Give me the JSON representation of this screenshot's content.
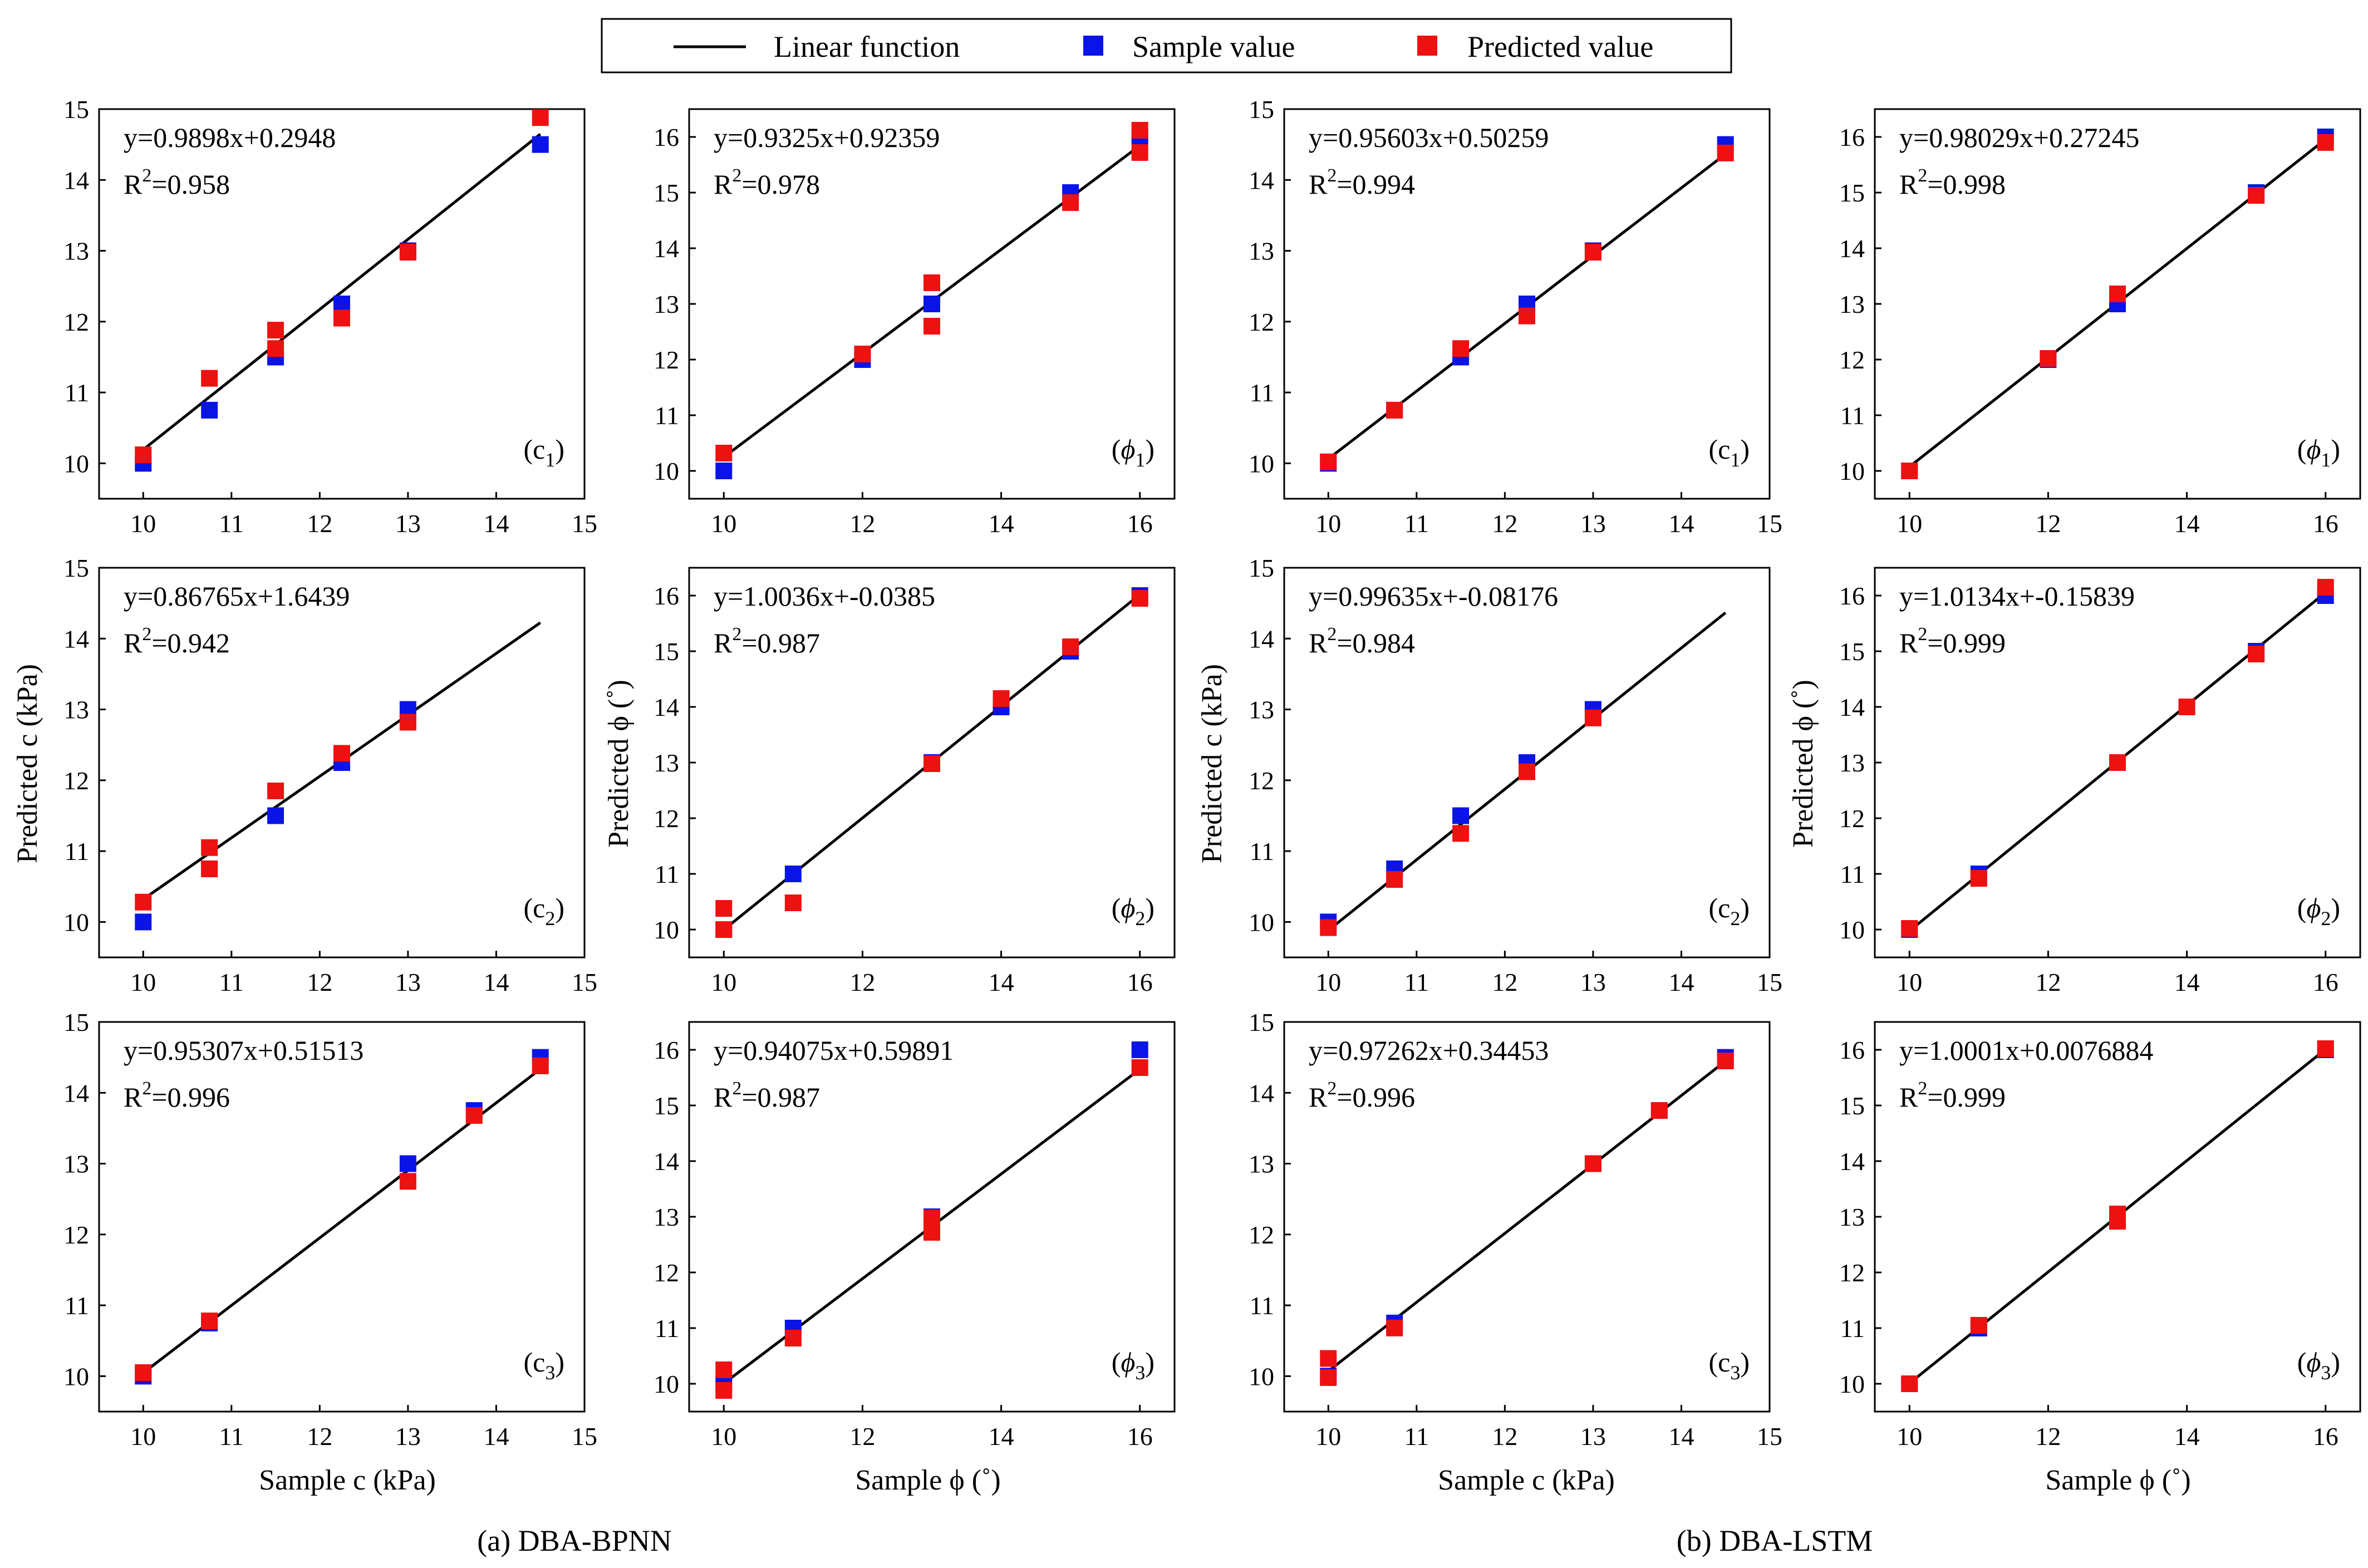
{
  "legend": {
    "line_label": "Linear function",
    "sample_label": "Sample value",
    "predicted_label": "Predicted value"
  },
  "colors": {
    "sample": "#0a14e6",
    "predicted": "#ee1111",
    "line": "#000000"
  },
  "captions": {
    "left": "(a) DBA-BPNN",
    "right": "(b) DBA-LSTM"
  },
  "axis_labels": {
    "y_c": "Predicted c (kPa)",
    "y_phi": "Predicted ϕ (˚)",
    "x_c": "Sample c (kPa)",
    "x_phi": "Sample ϕ (˚)"
  },
  "chart_data": [
    {
      "type": "scatter",
      "model": "DBA-BPNN",
      "panel": "c1",
      "label": "c",
      "sub": "1",
      "equation": "y=0.9898x+0.2948",
      "r2": "=0.958",
      "slope": 0.9898,
      "intercept": 0.2948,
      "xlim": [
        9.5,
        15
      ],
      "ylim": [
        9.5,
        15
      ],
      "xticks": [
        10,
        11,
        12,
        13,
        14,
        15
      ],
      "yticks": [
        10,
        11,
        12,
        13,
        14,
        15
      ],
      "line_x": [
        10,
        14.5
      ],
      "sample": [
        [
          10,
          10
        ],
        [
          10.75,
          10.75
        ],
        [
          11.5,
          11.5
        ],
        [
          12.25,
          12.25
        ],
        [
          13,
          13
        ],
        [
          14.5,
          14.5
        ]
      ],
      "predicted": [
        [
          10,
          10.12
        ],
        [
          10.75,
          11.2
        ],
        [
          11.5,
          11.88
        ],
        [
          11.5,
          11.62
        ],
        [
          12.25,
          12.05
        ],
        [
          13,
          12.98
        ],
        [
          14.5,
          14.88
        ]
      ]
    },
    {
      "type": "scatter",
      "model": "DBA-BPNN",
      "panel": "phi1",
      "label": "ϕ",
      "sub": "1",
      "equation": "y=0.9325x+0.92359",
      "r2": "=0.978",
      "slope": 0.9325,
      "intercept": 0.92359,
      "xlim": [
        9.5,
        16.5
      ],
      "ylim": [
        9.5,
        16.5
      ],
      "xticks": [
        10,
        12,
        14,
        16
      ],
      "yticks": [
        10,
        11,
        12,
        13,
        14,
        15,
        16
      ],
      "line_x": [
        10,
        16
      ],
      "sample": [
        [
          10,
          10
        ],
        [
          12,
          12
        ],
        [
          13,
          13
        ],
        [
          15,
          15
        ],
        [
          16,
          16
        ]
      ],
      "predicted": [
        [
          10,
          10.32
        ],
        [
          12,
          12.1
        ],
        [
          13,
          13.38
        ],
        [
          13,
          12.6
        ],
        [
          15,
          14.82
        ],
        [
          16,
          16.12
        ],
        [
          16,
          15.72
        ]
      ]
    },
    {
      "type": "scatter",
      "model": "DBA-LSTM",
      "panel": "c1",
      "label": "c",
      "sub": "1",
      "equation": "y=0.95603x+0.50259",
      "r2": "=0.994",
      "slope": 0.95603,
      "intercept": 0.50259,
      "xlim": [
        9.5,
        15
      ],
      "ylim": [
        9.5,
        15
      ],
      "xticks": [
        10,
        11,
        12,
        13,
        14,
        15
      ],
      "yticks": [
        10,
        11,
        12,
        13,
        14,
        15
      ],
      "line_x": [
        10,
        14.5
      ],
      "sample": [
        [
          10,
          10
        ],
        [
          10.75,
          10.75
        ],
        [
          11.5,
          11.5
        ],
        [
          12.25,
          12.25
        ],
        [
          13,
          13
        ],
        [
          14.5,
          14.5
        ]
      ],
      "predicted": [
        [
          10,
          10.02
        ],
        [
          10.75,
          10.75
        ],
        [
          11.5,
          11.62
        ],
        [
          12.25,
          12.08
        ],
        [
          13,
          12.98
        ],
        [
          14.5,
          14.38
        ]
      ]
    },
    {
      "type": "scatter",
      "model": "DBA-LSTM",
      "panel": "phi1",
      "label": "ϕ",
      "sub": "1",
      "equation": "y=0.98029x+0.27245",
      "r2": "=0.998",
      "slope": 0.98029,
      "intercept": 0.27245,
      "xlim": [
        9.5,
        16.5
      ],
      "ylim": [
        9.5,
        16.5
      ],
      "xticks": [
        10,
        12,
        14,
        16
      ],
      "yticks": [
        10,
        11,
        12,
        13,
        14,
        15,
        16
      ],
      "line_x": [
        10,
        16
      ],
      "sample": [
        [
          10,
          10
        ],
        [
          12,
          12
        ],
        [
          13,
          13
        ],
        [
          15,
          15
        ],
        [
          16,
          16
        ]
      ],
      "predicted": [
        [
          10,
          10
        ],
        [
          12,
          12.02
        ],
        [
          13,
          13.18
        ],
        [
          15,
          14.95
        ],
        [
          16,
          15.9
        ]
      ]
    },
    {
      "type": "scatter",
      "model": "DBA-BPNN",
      "panel": "c2",
      "label": "c",
      "sub": "2",
      "equation": "y=0.86765x+1.6439",
      "r2": "=0.942",
      "slope": 0.86765,
      "intercept": 1.6439,
      "xlim": [
        9.5,
        15
      ],
      "ylim": [
        9.5,
        15
      ],
      "xticks": [
        10,
        11,
        12,
        13,
        14,
        15
      ],
      "yticks": [
        10,
        11,
        12,
        13,
        14,
        15
      ],
      "line_x": [
        10,
        14.5
      ],
      "sample": [
        [
          10,
          10
        ],
        [
          10.75,
          10.75
        ],
        [
          11.5,
          11.5
        ],
        [
          12.25,
          12.25
        ],
        [
          13,
          13
        ]
      ],
      "predicted": [
        [
          10,
          10.28
        ],
        [
          10.75,
          11.05
        ],
        [
          10.75,
          10.75
        ],
        [
          11.5,
          11.85
        ],
        [
          12.25,
          12.38
        ],
        [
          13,
          12.82
        ]
      ]
    },
    {
      "type": "scatter",
      "model": "DBA-BPNN",
      "panel": "phi2",
      "label": "ϕ",
      "sub": "2",
      "equation": "y=1.0036x+-0.0385",
      "r2": "=0.987",
      "slope": 1.0036,
      "intercept": -0.0385,
      "xlim": [
        9.5,
        16.5
      ],
      "ylim": [
        9.5,
        16.5
      ],
      "xticks": [
        10,
        12,
        14,
        16
      ],
      "yticks": [
        10,
        11,
        12,
        13,
        14,
        15,
        16
      ],
      "line_x": [
        10,
        16
      ],
      "sample": [
        [
          10,
          10
        ],
        [
          11,
          11
        ],
        [
          13,
          13
        ],
        [
          14,
          14
        ],
        [
          15,
          15
        ],
        [
          16,
          16
        ]
      ],
      "predicted": [
        [
          10,
          10.38
        ],
        [
          10,
          10
        ],
        [
          11,
          10.48
        ],
        [
          13,
          12.98
        ],
        [
          14,
          14.15
        ],
        [
          15,
          15.08
        ],
        [
          16,
          15.95
        ]
      ]
    },
    {
      "type": "scatter",
      "model": "DBA-LSTM",
      "panel": "c2",
      "label": "c",
      "sub": "2",
      "equation": "y=0.99635x+-0.08176",
      "r2": "=0.984",
      "slope": 0.99635,
      "intercept": -0.08176,
      "xlim": [
        9.5,
        15
      ],
      "ylim": [
        9.5,
        15
      ],
      "xticks": [
        10,
        11,
        12,
        13,
        14,
        15
      ],
      "yticks": [
        10,
        11,
        12,
        13,
        14,
        15
      ],
      "line_x": [
        10,
        14.5
      ],
      "sample": [
        [
          10,
          10
        ],
        [
          10.75,
          10.75
        ],
        [
          11.5,
          11.5
        ],
        [
          12.25,
          12.25
        ],
        [
          13,
          13
        ]
      ],
      "predicted": [
        [
          10,
          9.92
        ],
        [
          10.75,
          10.6
        ],
        [
          11.5,
          11.25
        ],
        [
          12.25,
          12.12
        ],
        [
          13,
          12.88
        ]
      ]
    },
    {
      "type": "scatter",
      "model": "DBA-LSTM",
      "panel": "phi2",
      "label": "ϕ",
      "sub": "2",
      "equation": "y=1.0134x+-0.15839",
      "r2": "=0.999",
      "slope": 1.0134,
      "intercept": -0.15839,
      "xlim": [
        9.5,
        16.5
      ],
      "ylim": [
        9.5,
        16.5
      ],
      "xticks": [
        10,
        12,
        14,
        16
      ],
      "yticks": [
        10,
        11,
        12,
        13,
        14,
        15,
        16
      ],
      "line_x": [
        10,
        16
      ],
      "sample": [
        [
          10,
          10
        ],
        [
          11,
          11
        ],
        [
          13,
          13
        ],
        [
          14,
          14
        ],
        [
          15,
          15
        ],
        [
          16,
          16
        ]
      ],
      "predicted": [
        [
          10,
          10.02
        ],
        [
          11,
          10.92
        ],
        [
          13,
          13
        ],
        [
          14,
          14
        ],
        [
          15,
          14.95
        ],
        [
          16,
          16.15
        ]
      ]
    },
    {
      "type": "scatter",
      "model": "DBA-BPNN",
      "panel": "c3",
      "label": "c",
      "sub": "3",
      "equation": "y=0.95307x+0.51513",
      "r2": "=0.996",
      "slope": 0.95307,
      "intercept": 0.51513,
      "xlim": [
        9.5,
        15
      ],
      "ylim": [
        9.5,
        15
      ],
      "xticks": [
        10,
        11,
        12,
        13,
        14,
        15
      ],
      "yticks": [
        10,
        11,
        12,
        13,
        14,
        15
      ],
      "line_x": [
        10,
        14.5
      ],
      "sample": [
        [
          10,
          10
        ],
        [
          10.75,
          10.75
        ],
        [
          13,
          13
        ],
        [
          13.75,
          13.75
        ],
        [
          14.5,
          14.5
        ]
      ],
      "predicted": [
        [
          10,
          10.05
        ],
        [
          10.75,
          10.78
        ],
        [
          13,
          12.75
        ],
        [
          13.75,
          13.68
        ],
        [
          14.5,
          14.38
        ]
      ]
    },
    {
      "type": "scatter",
      "model": "DBA-BPNN",
      "panel": "phi3",
      "label": "ϕ",
      "sub": "3",
      "equation": "y=0.94075x+0.59891",
      "r2": "=0.987",
      "slope": 0.94075,
      "intercept": 0.59891,
      "xlim": [
        9.5,
        16.5
      ],
      "ylim": [
        9.5,
        16.5
      ],
      "xticks": [
        10,
        12,
        14,
        16
      ],
      "yticks": [
        10,
        11,
        12,
        13,
        14,
        15,
        16
      ],
      "line_x": [
        10,
        16
      ],
      "sample": [
        [
          10,
          10
        ],
        [
          11,
          11
        ],
        [
          13,
          13
        ],
        [
          16,
          16
        ]
      ],
      "predicted": [
        [
          10,
          10.25
        ],
        [
          10,
          9.88
        ],
        [
          11,
          10.82
        ],
        [
          13,
          12.98
        ],
        [
          13,
          12.72
        ],
        [
          16,
          15.68
        ]
      ]
    },
    {
      "type": "scatter",
      "model": "DBA-LSTM",
      "panel": "c3",
      "label": "c",
      "sub": "3",
      "equation": "y=0.97262x+0.34453",
      "r2": "=0.996",
      "slope": 0.97262,
      "intercept": 0.34453,
      "xlim": [
        9.5,
        15
      ],
      "ylim": [
        9.5,
        15
      ],
      "xticks": [
        10,
        11,
        12,
        13,
        14,
        15
      ],
      "yticks": [
        10,
        11,
        12,
        13,
        14,
        15
      ],
      "line_x": [
        10,
        14.5
      ],
      "sample": [
        [
          10,
          10
        ],
        [
          10.75,
          10.75
        ],
        [
          13,
          13
        ],
        [
          13.75,
          13.75
        ],
        [
          14.5,
          14.5
        ]
      ],
      "predicted": [
        [
          10,
          10.25
        ],
        [
          10,
          9.98
        ],
        [
          10.75,
          10.68
        ],
        [
          13,
          13
        ],
        [
          13.75,
          13.75
        ],
        [
          14.5,
          14.45
        ]
      ]
    },
    {
      "type": "scatter",
      "model": "DBA-LSTM",
      "panel": "phi3",
      "label": "ϕ",
      "sub": "3",
      "equation": "y=1.0001x+0.0076884",
      "r2": "=0.999",
      "slope": 1.0001,
      "intercept": 0.0076884,
      "xlim": [
        9.5,
        16.5
      ],
      "ylim": [
        9.5,
        16.5
      ],
      "xticks": [
        10,
        12,
        14,
        16
      ],
      "yticks": [
        10,
        11,
        12,
        13,
        14,
        15,
        16
      ],
      "line_x": [
        10,
        16
      ],
      "sample": [
        [
          10,
          10
        ],
        [
          11,
          11
        ],
        [
          13,
          13
        ],
        [
          16,
          16
        ]
      ],
      "predicted": [
        [
          10,
          10
        ],
        [
          11,
          11.05
        ],
        [
          13,
          13.05
        ],
        [
          13,
          12.92
        ],
        [
          16,
          16.02
        ]
      ]
    }
  ]
}
